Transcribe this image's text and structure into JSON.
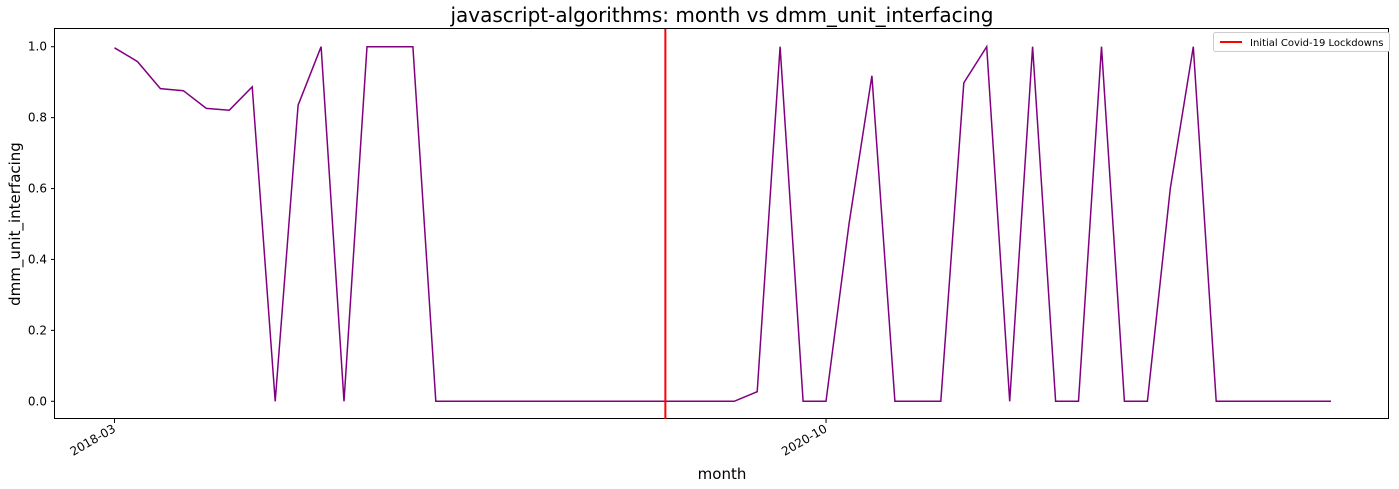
{
  "chart_data": {
    "type": "line",
    "title": "javascript-algorithms: month vs dmm_unit_interfacing",
    "xlabel": "month",
    "ylabel": "dmm_unit_interfacing",
    "x_ticks": [
      "2018-03",
      "2020-10"
    ],
    "y_ticks": [
      "0.0",
      "0.2",
      "0.4",
      "0.6",
      "0.8",
      "1.0"
    ],
    "ylim": [
      -0.05,
      1.05
    ],
    "grid": false,
    "legend_position": "top-right",
    "series": [
      {
        "color": "#800080",
        "x": [
          "2018-03",
          "2018-04",
          "2018-05",
          "2018-06",
          "2018-07",
          "2018-08",
          "2018-09",
          "2018-10",
          "2018-11",
          "2018-12",
          "2019-01",
          "2019-02",
          "2019-03",
          "2019-04",
          "2019-05",
          "2019-06",
          "2019-07",
          "2019-08",
          "2019-09",
          "2019-10",
          "2019-11",
          "2019-12",
          "2020-01",
          "2020-02",
          "2020-03",
          "2020-04",
          "2020-05",
          "2020-06",
          "2020-07",
          "2020-08",
          "2020-09",
          "2020-10",
          "2020-11",
          "2020-12",
          "2021-01",
          "2021-02",
          "2021-03",
          "2021-04",
          "2021-05",
          "2021-06",
          "2021-07",
          "2021-08",
          "2021-09",
          "2021-10",
          "2021-11",
          "2021-12",
          "2022-01",
          "2022-02",
          "2022-03",
          "2022-04",
          "2022-05",
          "2022-06",
          "2022-07",
          "2022-08"
        ],
        "values": [
          0.997,
          0.958,
          0.882,
          0.876,
          0.826,
          0.821,
          0.887,
          0.0,
          0.835,
          1.0,
          0.0,
          1.0,
          1.0,
          1.0,
          0.0,
          0.0,
          0.0,
          0.0,
          0.0,
          0.0,
          0.0,
          0.0,
          0.0,
          0.0,
          0.0,
          0.0,
          0.0,
          0.0,
          0.027,
          1.0,
          0.0,
          0.0,
          0.5,
          0.918,
          0.0,
          0.0,
          0.0,
          0.898,
          1.0,
          0.0,
          1.0,
          0.0,
          0.0,
          1.0,
          0.0,
          0.0,
          0.6,
          1.0,
          0.0,
          0.0,
          0.0,
          0.0,
          0.0,
          0.0
        ]
      }
    ],
    "reference_line": {
      "x": "2020-03",
      "color": "#ff0000",
      "label": "Initial Covid-19 Lockdowns"
    }
  }
}
